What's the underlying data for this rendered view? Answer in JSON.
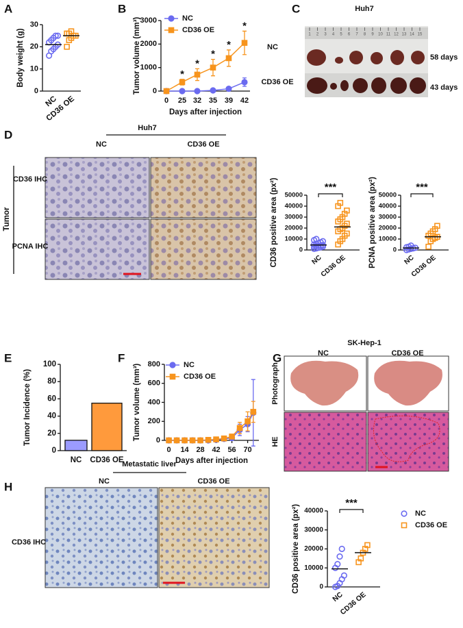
{
  "figure": {
    "panel_letters": [
      "A",
      "B",
      "C",
      "D",
      "E",
      "F",
      "G",
      "H"
    ],
    "huh7_photo": {
      "title": "Huh7",
      "ruler_marks": [
        "1",
        "2",
        "3",
        "4",
        "5",
        "6",
        "7",
        "8",
        "9",
        "10",
        "11",
        "12",
        "13",
        "14",
        "15"
      ],
      "rows": [
        {
          "label": "NC",
          "days": "58 days"
        },
        {
          "label": "CD36 OE",
          "days": "43 days"
        }
      ]
    },
    "huh7_ihc": {
      "title": "Huh7",
      "columns": [
        "NC",
        "CD36 OE"
      ],
      "rows": [
        "CD36 IHC",
        "PCNA IHC"
      ],
      "group": "Tumor"
    },
    "sk_hep1": {
      "title": "SK-Hep-1",
      "columns": [
        "NC",
        "CD36 OE"
      ],
      "rows": [
        "Photograph",
        "HE"
      ]
    },
    "metastatic": {
      "title": "Metastatic liver",
      "columns": [
        "NC",
        "CD36 OE"
      ],
      "row": "CD36 IHC"
    }
  },
  "chart_data": [
    {
      "type": "strip",
      "y_label": "Body weight (g)",
      "categories": [
        "NC",
        "CD36 OE"
      ],
      "series": [
        {
          "name": "NC",
          "color": "#6b6bf0",
          "marker": "circle",
          "values": [
            16,
            18,
            19,
            20,
            21,
            22,
            23,
            24,
            25,
            25
          ],
          "mean": 21
        },
        {
          "name": "CD36 OE",
          "color": "#f7941d",
          "marker": "square",
          "values": [
            20,
            23,
            24,
            25,
            25,
            26,
            26,
            27
          ],
          "mean": 25
        }
      ],
      "ylim": [
        0,
        30
      ],
      "yticks": [
        0,
        10,
        20,
        30
      ]
    },
    {
      "type": "line",
      "y_label": "Tumor volume (mm³)",
      "x_label": "Days after injection",
      "categories": [
        "0",
        "25",
        "32",
        "35",
        "39",
        "42"
      ],
      "series": [
        {
          "name": "NC",
          "color": "#6b6bf0",
          "marker": "circle",
          "values": [
            0,
            0,
            0,
            30,
            100,
            380
          ],
          "errors": [
            0,
            0,
            0,
            20,
            60,
            180
          ]
        },
        {
          "name": "CD36 OE",
          "color": "#f7941d",
          "marker": "square",
          "values": [
            0,
            380,
            700,
            1000,
            1400,
            2050
          ],
          "errors": [
            0,
            120,
            250,
            350,
            350,
            500
          ]
        }
      ],
      "significance": [
        null,
        "*",
        "*",
        "*",
        "*",
        "*"
      ],
      "ylim": [
        0,
        3000
      ],
      "yticks": [
        0,
        1000,
        2000,
        3000
      ]
    },
    {
      "type": "strip",
      "y_label": "CD36 positive area (px²)",
      "categories": [
        "NC",
        "CD36 OE"
      ],
      "series": [
        {
          "name": "NC",
          "color": "#6b6bf0",
          "marker": "circle",
          "values": [
            1000,
            1500,
            2000,
            2500,
            3000,
            3000,
            3500,
            4000,
            4000,
            4500,
            5000,
            5500,
            6000,
            7000,
            8000,
            9000,
            10000
          ],
          "mean": 4500
        },
        {
          "name": "CD36 OE",
          "color": "#f7941d",
          "marker": "square",
          "values": [
            5000,
            8000,
            10000,
            13000,
            15000,
            17000,
            19000,
            20000,
            22000,
            24000,
            26000,
            28000,
            30000,
            33000,
            36000,
            40000,
            43000
          ],
          "mean": 21000
        }
      ],
      "significance": "***",
      "ylim": [
        0,
        50000
      ],
      "yticks": [
        0,
        10000,
        20000,
        30000,
        40000,
        50000
      ]
    },
    {
      "type": "strip",
      "y_label": "PCNA positive area (px²)",
      "categories": [
        "NC",
        "CD36 OE"
      ],
      "series": [
        {
          "name": "NC",
          "color": "#6b6bf0",
          "marker": "circle",
          "values": [
            0,
            500,
            1000,
            1500,
            2000,
            2500,
            3000,
            4000
          ],
          "mean": 1800
        },
        {
          "name": "CD36 OE",
          "color": "#f7941d",
          "marker": "square",
          "values": [
            3000,
            8000,
            10000,
            11000,
            12000,
            13000,
            15000,
            17000,
            19000,
            22000
          ],
          "mean": 12000
        }
      ],
      "significance": "***",
      "ylim": [
        0,
        50000
      ],
      "yticks": [
        0,
        10000,
        20000,
        30000,
        40000,
        50000
      ]
    },
    {
      "type": "bar",
      "y_label": "Tumor Incidence (%)",
      "categories": [
        "NC",
        "CD36 OE"
      ],
      "values": [
        12,
        55
      ],
      "colors": [
        "#9b9bff",
        "#ff9a3c"
      ],
      "ylim": [
        0,
        100
      ],
      "yticks": [
        0,
        20,
        40,
        60,
        80,
        100
      ]
    },
    {
      "type": "line",
      "y_label": "Tumor volume (mm³)",
      "x_label": "Days after injection",
      "x": [
        0,
        7,
        14,
        21,
        28,
        35,
        42,
        49,
        56,
        63,
        70,
        75
      ],
      "series": [
        {
          "name": "NC",
          "color": "#6b6bf0",
          "marker": "circle",
          "values": [
            0,
            0,
            0,
            0,
            0,
            0,
            5,
            15,
            25,
            110,
            170,
            290
          ],
          "errors": [
            0,
            0,
            0,
            0,
            0,
            0,
            5,
            10,
            20,
            60,
            80,
            350
          ]
        },
        {
          "name": "CD36 OE",
          "color": "#f7941d",
          "marker": "square",
          "values": [
            0,
            0,
            0,
            0,
            0,
            5,
            10,
            20,
            40,
            130,
            200,
            300
          ],
          "errors": [
            0,
            0,
            0,
            0,
            0,
            5,
            10,
            15,
            20,
            60,
            100,
            110
          ]
        }
      ],
      "xlim": [
        -4,
        80
      ],
      "xticks": [
        0,
        14,
        28,
        42,
        56,
        70
      ],
      "ylim": [
        0,
        800
      ],
      "yticks": [
        0,
        200,
        400,
        600,
        800
      ]
    },
    {
      "type": "strip",
      "y_label": "CD36 positive area (px²)",
      "categories": [
        "NC",
        "CD36 OE"
      ],
      "legend": true,
      "series": [
        {
          "name": "NC",
          "color": "#6b6bf0",
          "marker": "circle",
          "values": [
            0,
            500,
            2000,
            4000,
            6000,
            10000,
            12000,
            16000,
            20000
          ],
          "mean": 9500
        },
        {
          "name": "CD36 OE",
          "color": "#f7941d",
          "marker": "square",
          "values": [
            13000,
            15000,
            18000,
            20000,
            22000
          ],
          "mean": 18000
        }
      ],
      "significance": "***",
      "ylim": [
        0,
        40000
      ],
      "yticks": [
        0,
        10000,
        20000,
        30000,
        40000
      ]
    }
  ]
}
